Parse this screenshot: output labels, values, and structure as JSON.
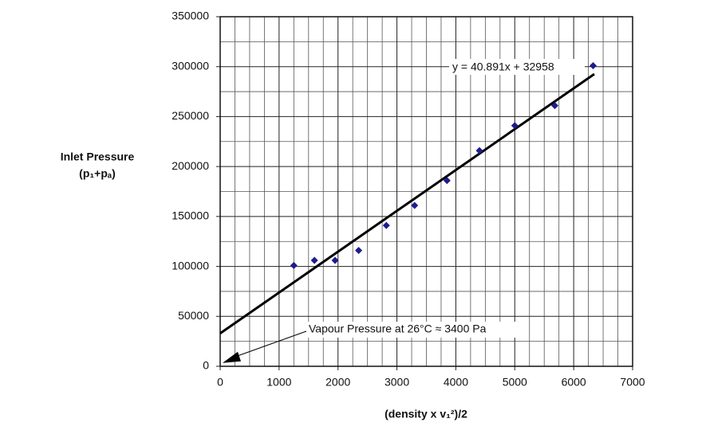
{
  "chart_data": {
    "type": "scatter",
    "xlabel": "(density x v₁²)/2",
    "ylabel": [
      "Inlet Pressure",
      "(p₁+pₐ)"
    ],
    "x": [
      1250,
      1600,
      1950,
      2350,
      2820,
      3300,
      3850,
      4400,
      5000,
      5680,
      6330
    ],
    "series": [
      {
        "color": "#1c1c8e",
        "values": [
          101000,
          106000,
          106000,
          116000,
          141000,
          161000,
          186000,
          216000,
          241000,
          261000,
          301000
        ]
      }
    ],
    "xlim": [
      0,
      7000
    ],
    "ylim": [
      0,
      350000
    ],
    "xticks": [
      0,
      1000,
      2000,
      3000,
      4000,
      5000,
      6000,
      7000
    ],
    "yticks": [
      0,
      50000,
      100000,
      150000,
      200000,
      250000,
      300000,
      350000
    ],
    "minor_xgrid": [
      250,
      500,
      750,
      1250,
      1500,
      1750,
      2250,
      2500,
      2750,
      3250,
      3500,
      3750,
      4250,
      4500,
      4750,
      5250,
      5500,
      5750,
      6250,
      6500,
      6750
    ],
    "minor_ygrid": [
      25000,
      75000,
      125000,
      175000,
      225000,
      275000,
      325000
    ],
    "grid": true,
    "trendline": {
      "slope": 40.891,
      "intercept": 32958,
      "xrange": [
        0,
        6350
      ],
      "label": "y = 40.891x + 32958"
    },
    "annotation": {
      "text": "Vapour Pressure at 26°C ≈ 3400 Pa",
      "x": 0,
      "y": 3400
    }
  }
}
